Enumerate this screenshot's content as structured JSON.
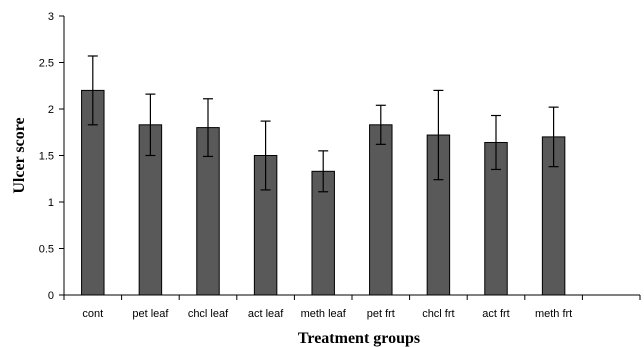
{
  "chart_data": {
    "type": "bar",
    "title": "",
    "xlabel": "Treatment groups",
    "ylabel": "Ulcer score",
    "ylim": [
      0,
      3
    ],
    "yticks": [
      "0",
      "0.5",
      "1",
      "1.5",
      "2",
      "2.5",
      "3"
    ],
    "categories": [
      "cont",
      "pet leaf",
      "chcl leaf",
      "act leaf",
      "meth leaf",
      "pet frt",
      "chcl frt",
      "act frt",
      "meth frt"
    ],
    "values": [
      2.2,
      1.83,
      1.8,
      1.5,
      1.33,
      1.83,
      1.72,
      1.64,
      1.7
    ],
    "error_plus": [
      0.37,
      0.33,
      0.31,
      0.37,
      0.22,
      0.21,
      0.48,
      0.29,
      0.32
    ],
    "error_minus": [
      0.37,
      0.33,
      0.31,
      0.37,
      0.22,
      0.21,
      0.48,
      0.29,
      0.32
    ],
    "grid": false,
    "legend": "none",
    "colors": {
      "bar": "#595959",
      "axis": "#000000"
    }
  }
}
